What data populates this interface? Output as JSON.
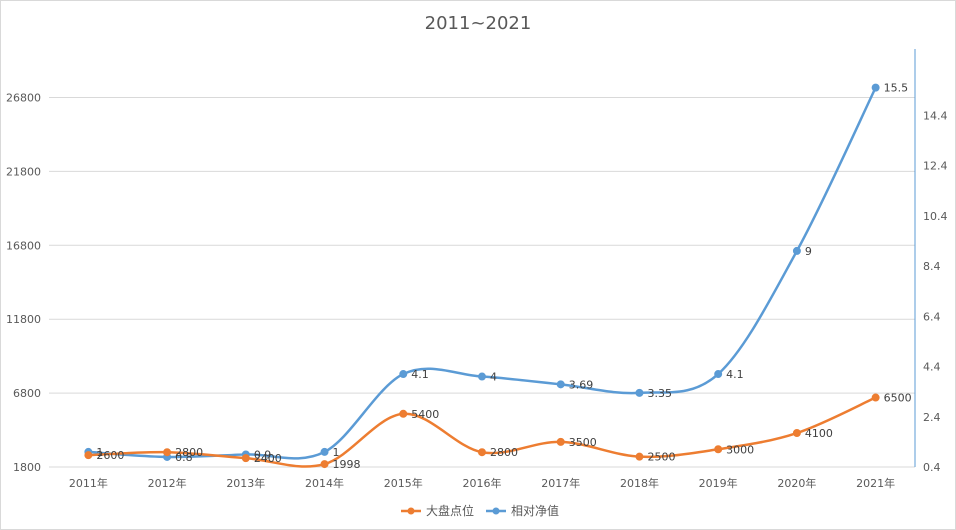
{
  "chart_data": {
    "type": "line",
    "title": "2011~2021",
    "categories": [
      "2011年",
      "2012年",
      "2013年",
      "2014年",
      "2015年",
      "2016年",
      "2017年",
      "2018年",
      "2019年",
      "2020年",
      "2021年"
    ],
    "series": [
      {
        "name": "大盘点位",
        "axis": "left",
        "color": "#ED7D31",
        "values": [
          2600,
          2800,
          2400,
          1998,
          5400,
          2800,
          3500,
          2500,
          3000,
          4100,
          6500
        ],
        "labels": [
          "2600",
          "2800",
          "2400",
          "1998",
          "5400",
          "2800",
          "3500",
          "2500",
          "3000",
          "4100",
          "6500"
        ]
      },
      {
        "name": "相对净值",
        "axis": "right",
        "color": "#5B9BD5",
        "values": [
          1,
          0.8,
          0.9,
          1,
          4.1,
          4,
          3.69,
          3.35,
          4.1,
          9,
          15.5
        ],
        "labels": [
          "1",
          "0.8",
          "0.9",
          "1",
          "4.1",
          "4",
          "3.69",
          "3.35",
          "4.1",
          "9",
          "15.5"
        ]
      }
    ],
    "y_left": {
      "min": 1800,
      "max": 29000,
      "ticks": [
        "1800",
        "6800",
        "11800",
        "16800",
        "21800",
        "26800"
      ]
    },
    "y_right": {
      "min": 0.4,
      "max": 16.4,
      "ticks": [
        "0.4",
        "2.4",
        "4.4",
        "6.4",
        "8.4",
        "10.4",
        "12.4",
        "14.4"
      ]
    },
    "grid": true,
    "legend": "bottom",
    "smooth": true
  }
}
